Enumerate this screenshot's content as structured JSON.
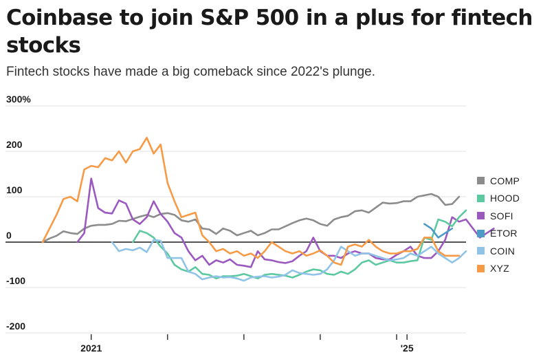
{
  "title": "Coinbase to join S&P 500 in a plus for fintech stocks",
  "subtitle": "Fintech stocks have made a big comeback since 2022's plunge.",
  "chart_data": {
    "type": "line",
    "y_unit_label": "%",
    "ylim": [
      -200,
      300
    ],
    "y_ticks": [
      {
        "value": 300,
        "label": "300%"
      },
      {
        "value": 200,
        "label": "200"
      },
      {
        "value": 100,
        "label": "100"
      },
      {
        "value": 0,
        "label": "0"
      },
      {
        "value": -100,
        "label": "-100"
      },
      {
        "value": -200,
        "label": "-200"
      }
    ],
    "xlim": [
      0,
      61
    ],
    "x_ticks": [
      {
        "value": 7,
        "label": "2021"
      },
      {
        "value": 18,
        "label": ""
      },
      {
        "value": 29,
        "label": ""
      },
      {
        "value": 40,
        "label": ""
      },
      {
        "value": 51,
        "label": ""
      },
      {
        "value": 52.5,
        "label": "'25"
      }
    ],
    "series": [
      {
        "name": "COMP",
        "color": "#8c8c8c",
        "start": 0,
        "values": [
          0,
          8,
          14,
          24,
          20,
          18,
          30,
          36,
          38,
          38,
          40,
          47,
          46,
          51,
          56,
          60,
          55,
          62,
          64,
          60,
          48,
          45,
          50,
          30,
          28,
          18,
          30,
          25,
          15,
          20,
          25,
          15,
          20,
          28,
          28,
          35,
          42,
          48,
          52,
          48,
          40,
          36,
          50,
          55,
          58,
          68,
          70,
          65,
          76,
          87,
          85,
          86,
          90,
          90,
          100,
          103,
          106,
          100,
          82,
          84,
          100
        ]
      },
      {
        "name": "SOFI",
        "color": "#9b59c0",
        "start": 5,
        "values": [
          0,
          20,
          140,
          75,
          65,
          63,
          92,
          85,
          50,
          40,
          55,
          90,
          62,
          45,
          20,
          10,
          -20,
          -40,
          -30,
          -50,
          -40,
          -45,
          -38,
          -50,
          -52,
          -55,
          -20,
          -38,
          -40,
          -44,
          -46,
          -42,
          -30,
          -20,
          10,
          -20,
          -30,
          -30,
          -35,
          -25,
          -20,
          -25,
          -25,
          -35,
          -38,
          -38,
          -28,
          -20,
          -10,
          -30,
          -35,
          -35,
          -20,
          5,
          55,
          45,
          50,
          30,
          10,
          20,
          30
        ]
      },
      {
        "name": "HOOD",
        "color": "#5cc9a0",
        "start": 13,
        "values": [
          0,
          25,
          20,
          10,
          -10,
          -25,
          -50,
          -60,
          -65,
          -55,
          -70,
          -72,
          -80,
          -75,
          -75,
          -74,
          -70,
          -75,
          -80,
          -72,
          -70,
          -72,
          -74,
          -78,
          -72,
          -65,
          -60,
          -62,
          -70,
          -72,
          -65,
          -70,
          -60,
          -45,
          -40,
          -50,
          -45,
          -40,
          -45,
          -45,
          -42,
          -40,
          10,
          5,
          50,
          45,
          35,
          55,
          70
        ]
      },
      {
        "name": "ETOR",
        "color": "#4f9bc8",
        "start": 55,
        "values": [
          40,
          30,
          10,
          20,
          30
        ]
      },
      {
        "name": "COIN",
        "color": "#8fc3e8",
        "start": 10,
        "values": [
          0,
          -20,
          -15,
          -18,
          -12,
          -22,
          5,
          3,
          -35,
          -35,
          -35,
          -65,
          -70,
          -82,
          -78,
          -75,
          -78,
          -77,
          -80,
          -85,
          -78,
          -76,
          -75,
          -78,
          -76,
          -72,
          -62,
          -68,
          -70,
          -72,
          -70,
          -60,
          -40,
          -10,
          -20,
          -30,
          -25,
          -25,
          -30,
          -35,
          -40,
          -38,
          -35,
          -25,
          -30,
          -20,
          -10,
          -25,
          -35,
          -45,
          -35,
          -20
        ]
      },
      {
        "name": "XYZ",
        "color": "#f79a45",
        "start": 0,
        "values": [
          0,
          30,
          60,
          95,
          100,
          90,
          160,
          168,
          165,
          185,
          180,
          200,
          175,
          200,
          205,
          230,
          195,
          215,
          130,
          90,
          55,
          60,
          65,
          15,
          0,
          -20,
          -15,
          -25,
          -20,
          -30,
          -25,
          -35,
          -20,
          0,
          -10,
          -20,
          -25,
          -20,
          -30,
          -25,
          -18,
          -30,
          -45,
          -50,
          -10,
          -5,
          -10,
          5,
          -10,
          -20,
          -25,
          -25,
          -20,
          -20,
          -15,
          10,
          10,
          -20,
          -30,
          -30,
          -30
        ]
      }
    ],
    "legend": {
      "placement": "right",
      "order": [
        "COMP",
        "HOOD",
        "SOFI",
        "ETOR",
        "COIN",
        "XYZ"
      ]
    },
    "grid": true
  }
}
